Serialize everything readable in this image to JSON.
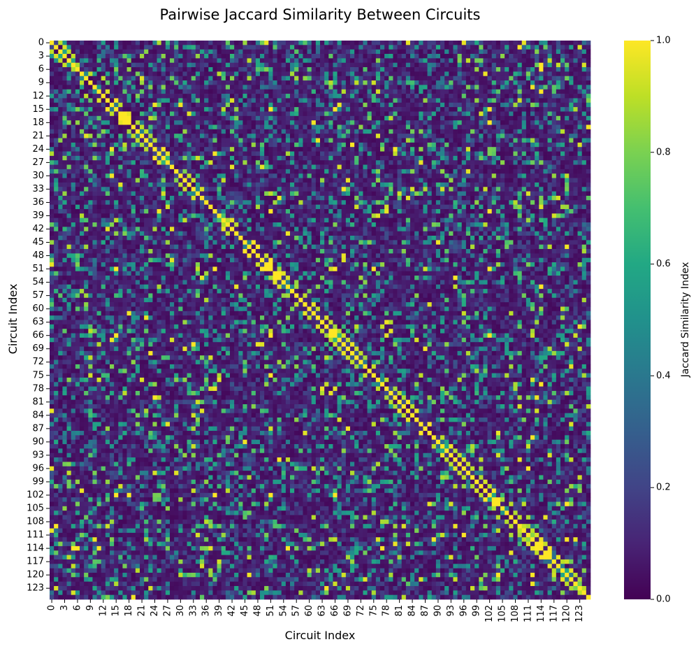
{
  "chart_data": {
    "type": "heatmap",
    "title": "Pairwise Jaccard Similarity Between Circuits",
    "xlabel": "Circuit Index",
    "ylabel": "Circuit Index",
    "n": 126,
    "tick_labels": [
      "0",
      "3",
      "6",
      "9",
      "12",
      "15",
      "18",
      "21",
      "24",
      "27",
      "30",
      "33",
      "36",
      "39",
      "42",
      "45",
      "48",
      "51",
      "54",
      "57",
      "60",
      "63",
      "66",
      "69",
      "72",
      "75",
      "78",
      "81",
      "84",
      "87",
      "90",
      "93",
      "96",
      "99",
      "102",
      "105",
      "108",
      "111",
      "114",
      "117",
      "120",
      "123"
    ],
    "tick_step": 3,
    "colorbar": {
      "label": "Jaccard Similarity Index",
      "range": [
        0.0,
        1.0
      ],
      "ticks": [
        "0.0",
        "0.2",
        "0.4",
        "0.6",
        "0.8",
        "1.0"
      ],
      "colormap": "viridis"
    },
    "diagonal_value": 1.0,
    "high_similarity_pairs": [
      [
        0,
        2,
        0.9
      ],
      [
        1,
        3,
        0.95
      ],
      [
        2,
        4,
        0.9
      ],
      [
        3,
        21,
        0.85
      ],
      [
        4,
        46,
        0.9
      ],
      [
        5,
        114,
        1.0
      ],
      [
        6,
        114,
        1.0
      ],
      [
        7,
        9,
        0.9
      ],
      [
        8,
        12,
        0.9
      ],
      [
        11,
        114,
        1.0
      ],
      [
        13,
        15,
        1.0
      ],
      [
        14,
        16,
        0.9
      ],
      [
        15,
        51,
        1.0
      ],
      [
        15,
        66,
        1.0
      ],
      [
        15,
        102,
        1.0
      ],
      [
        16,
        17,
        1.0
      ],
      [
        17,
        18,
        1.0
      ],
      [
        18,
        102,
        1.0
      ],
      [
        19,
        21,
        0.9
      ],
      [
        20,
        22,
        0.9
      ],
      [
        24,
        80,
        1.0
      ],
      [
        25,
        80,
        0.9
      ],
      [
        27,
        114,
        0.8
      ],
      [
        30,
        120,
        0.9
      ],
      [
        35,
        114,
        0.8
      ],
      [
        38,
        51,
        1.0
      ],
      [
        38,
        102,
        1.0
      ],
      [
        40,
        15,
        0.9
      ],
      [
        45,
        47,
        1.0
      ],
      [
        46,
        48,
        1.0
      ],
      [
        49,
        51,
        1.0
      ],
      [
        50,
        51,
        1.0
      ],
      [
        51,
        66,
        1.0
      ],
      [
        51,
        102,
        1.0
      ],
      [
        52,
        53,
        1.0
      ],
      [
        55,
        114,
        1.0
      ],
      [
        57,
        59,
        0.9
      ],
      [
        60,
        62,
        0.9
      ],
      [
        65,
        66,
        1.0
      ],
      [
        66,
        102,
        1.0
      ],
      [
        67,
        69,
        0.9
      ],
      [
        70,
        72,
        0.9
      ],
      [
        75,
        51,
        1.0
      ],
      [
        76,
        78,
        0.9
      ],
      [
        79,
        81,
        0.9
      ],
      [
        82,
        84,
        0.9
      ],
      [
        86,
        88,
        1.0
      ],
      [
        89,
        91,
        0.9
      ],
      [
        93,
        95,
        0.9
      ],
      [
        96,
        98,
        0.9
      ],
      [
        101,
        103,
        1.0
      ],
      [
        103,
        104,
        1.0
      ],
      [
        104,
        120,
        1.0
      ],
      [
        107,
        109,
        0.9
      ],
      [
        110,
        112,
        0.9
      ],
      [
        113,
        114,
        1.0
      ],
      [
        115,
        116,
        1.0
      ],
      [
        117,
        119,
        0.9
      ],
      [
        120,
        122,
        0.9
      ],
      [
        123,
        124,
        0.9
      ]
    ]
  }
}
